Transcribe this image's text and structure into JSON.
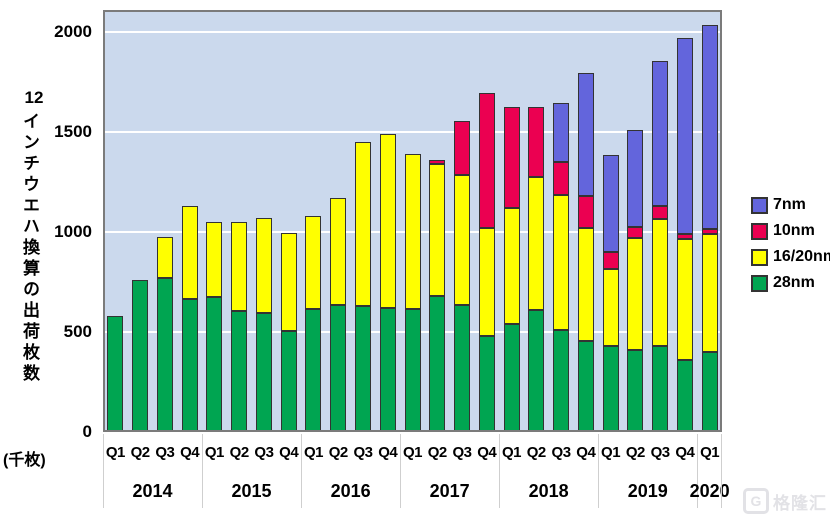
{
  "watermark": {
    "logo": "G",
    "text": "格隆汇"
  },
  "chart_data": {
    "type": "bar",
    "stacked": true,
    "title": "",
    "ylabel_number": "12",
    "ylabel_vertical": "インチウエハ換算の出荷枚数",
    "ylabel_unit": "(千枚)",
    "y_ticks": [
      0,
      500,
      1000,
      1500,
      2000
    ],
    "ylim": [
      0,
      2110
    ],
    "grid": "horizontal white gridlines",
    "legend_position": "right",
    "plot_bg_color": "#CBD9ED",
    "categories": [
      "Q1",
      "Q2",
      "Q3",
      "Q4",
      "Q1",
      "Q2",
      "Q3",
      "Q4",
      "Q1",
      "Q2",
      "Q3",
      "Q4",
      "Q1",
      "Q2",
      "Q3",
      "Q4",
      "Q1",
      "Q2",
      "Q3",
      "Q4",
      "Q1",
      "Q2",
      "Q3",
      "Q4",
      "Q1"
    ],
    "year_groups": [
      {
        "label": "2014",
        "count": 4
      },
      {
        "label": "2015",
        "count": 4
      },
      {
        "label": "2016",
        "count": 4
      },
      {
        "label": "2017",
        "count": 4
      },
      {
        "label": "2018",
        "count": 4
      },
      {
        "label": "2019",
        "count": 4
      },
      {
        "label": "2020",
        "count": 1
      }
    ],
    "series": [
      {
        "name": "28nm",
        "color": "#00A551",
        "values": [
          580,
          760,
          770,
          665,
          675,
          605,
          595,
          505,
          615,
          635,
          630,
          620,
          615,
          680,
          635,
          480,
          540,
          610,
          510,
          455,
          430,
          410,
          430,
          360,
          400
        ]
      },
      {
        "name": "16/20nm",
        "color": "#FFFF00",
        "values": [
          0,
          0,
          205,
          465,
          375,
          445,
          475,
          490,
          465,
          535,
          820,
          870,
          775,
          660,
          650,
          540,
          580,
          665,
          675,
          565,
          385,
          560,
          635,
          605,
          590
        ]
      },
      {
        "name": "10nm",
        "color": "#EB0051",
        "values": [
          0,
          0,
          0,
          0,
          0,
          0,
          0,
          0,
          0,
          0,
          0,
          0,
          0,
          20,
          270,
          675,
          505,
          350,
          165,
          160,
          85,
          55,
          65,
          25,
          25
        ]
      },
      {
        "name": "7nm",
        "color": "#6365DC",
        "values": [
          0,
          0,
          0,
          0,
          0,
          0,
          0,
          0,
          0,
          0,
          0,
          0,
          0,
          0,
          0,
          0,
          0,
          0,
          295,
          615,
          485,
          485,
          725,
          980,
          1020
        ]
      }
    ],
    "legend": [
      {
        "label": "7nm",
        "color": "#6365DC"
      },
      {
        "label": "10nm",
        "color": "#EB0051"
      },
      {
        "label": "16/20nm",
        "color": "#FFFF00"
      },
      {
        "label": "28nm",
        "color": "#00A551"
      }
    ]
  }
}
